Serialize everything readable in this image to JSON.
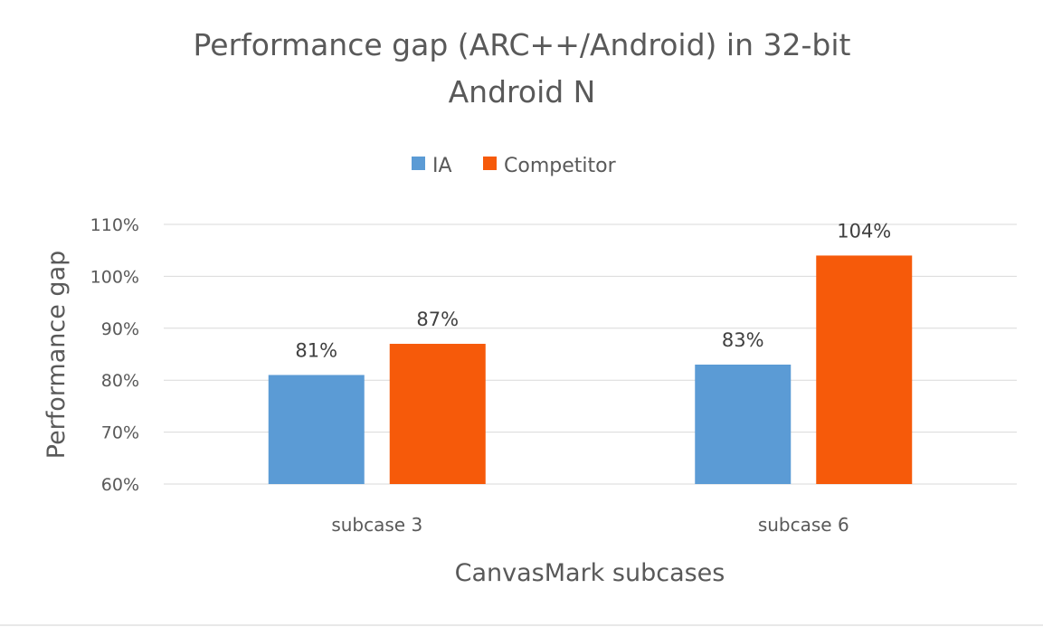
{
  "chart_data": {
    "type": "bar",
    "title_lines": [
      "Performance gap (ARC++/Android) in 32-bit",
      "Android N"
    ],
    "xlabel": "CanvasMark subcases",
    "ylabel": "Performance gap",
    "categories": [
      "subcase 3",
      "subcase 6"
    ],
    "series": [
      {
        "name": "IA",
        "color": "#5b9bd5",
        "values": [
          81,
          83
        ],
        "labels": [
          "81%",
          "83%"
        ]
      },
      {
        "name": "Competitor",
        "color": "#f65a0a",
        "values": [
          87,
          104
        ],
        "labels": [
          "87%",
          "104%"
        ]
      }
    ],
    "ylim": [
      60,
      110
    ],
    "yticks": [
      60,
      70,
      80,
      90,
      100,
      110
    ],
    "ytick_labels": [
      "60%",
      "70%",
      "80%",
      "90%",
      "100%",
      "110%"
    ],
    "grid": true,
    "legend_position": "top"
  }
}
